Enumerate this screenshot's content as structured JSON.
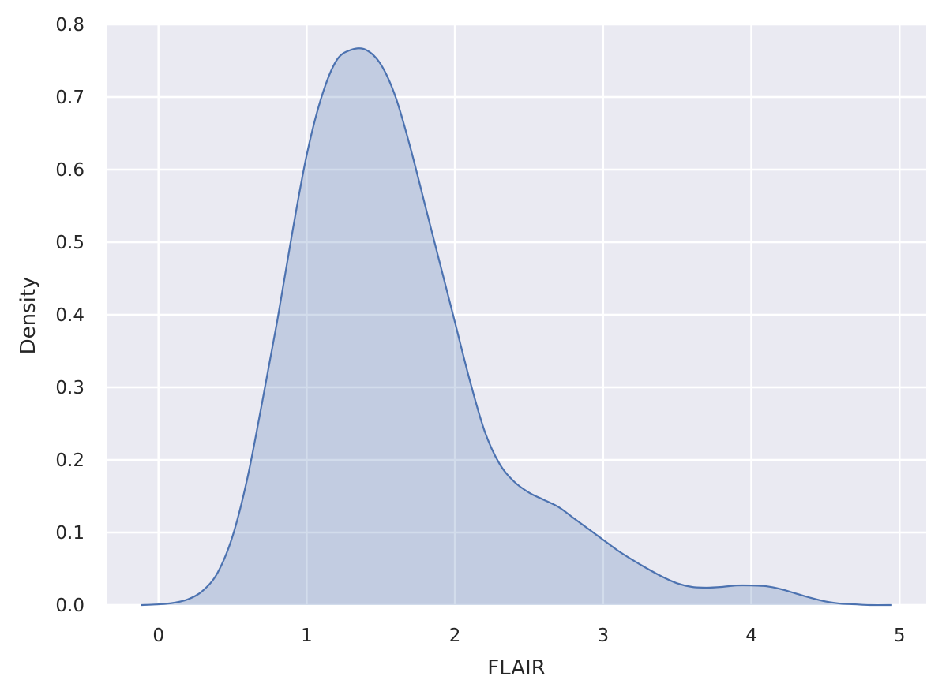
{
  "chart_data": {
    "type": "area",
    "title": "",
    "xlabel": "FLAIR",
    "ylabel": "Density",
    "xlim": [
      -0.35,
      5.18
    ],
    "ylim": [
      0,
      0.8
    ],
    "x_ticks": [
      0,
      1,
      2,
      3,
      4,
      5
    ],
    "y_ticks": [
      0.0,
      0.1,
      0.2,
      0.3,
      0.4,
      0.5,
      0.6,
      0.7,
      0.8
    ],
    "x_tick_labels": [
      "0",
      "1",
      "2",
      "3",
      "4",
      "5"
    ],
    "y_tick_labels": [
      "0.0",
      "0.1",
      "0.2",
      "0.3",
      "0.4",
      "0.5",
      "0.6",
      "0.7",
      "0.8"
    ],
    "grid": true,
    "legend": "none",
    "series": [
      {
        "x": [
          -0.12,
          0.0,
          0.1,
          0.2,
          0.3,
          0.4,
          0.5,
          0.6,
          0.7,
          0.8,
          0.9,
          1.0,
          1.1,
          1.2,
          1.3,
          1.4,
          1.5,
          1.6,
          1.7,
          1.8,
          1.9,
          2.0,
          2.1,
          2.2,
          2.3,
          2.4,
          2.5,
          2.6,
          2.7,
          2.8,
          2.9,
          3.0,
          3.1,
          3.2,
          3.3,
          3.4,
          3.5,
          3.6,
          3.7,
          3.8,
          3.9,
          4.0,
          4.1,
          4.2,
          4.3,
          4.4,
          4.5,
          4.6,
          4.7,
          4.8,
          4.95
        ],
        "y": [
          0.0,
          0.001,
          0.003,
          0.008,
          0.02,
          0.045,
          0.095,
          0.175,
          0.28,
          0.39,
          0.51,
          0.62,
          0.7,
          0.75,
          0.765,
          0.765,
          0.745,
          0.7,
          0.63,
          0.55,
          0.47,
          0.39,
          0.31,
          0.24,
          0.195,
          0.17,
          0.155,
          0.145,
          0.135,
          0.12,
          0.105,
          0.09,
          0.075,
          0.062,
          0.05,
          0.039,
          0.03,
          0.025,
          0.024,
          0.025,
          0.027,
          0.027,
          0.026,
          0.022,
          0.016,
          0.01,
          0.005,
          0.002,
          0.001,
          0.0,
          0.0
        ]
      }
    ],
    "colors": {
      "line": "#4c72b0",
      "fill": "#c2cbe3",
      "plot_background": "#eaeaf2",
      "grid": "#ffffff",
      "text": "#262626"
    }
  }
}
